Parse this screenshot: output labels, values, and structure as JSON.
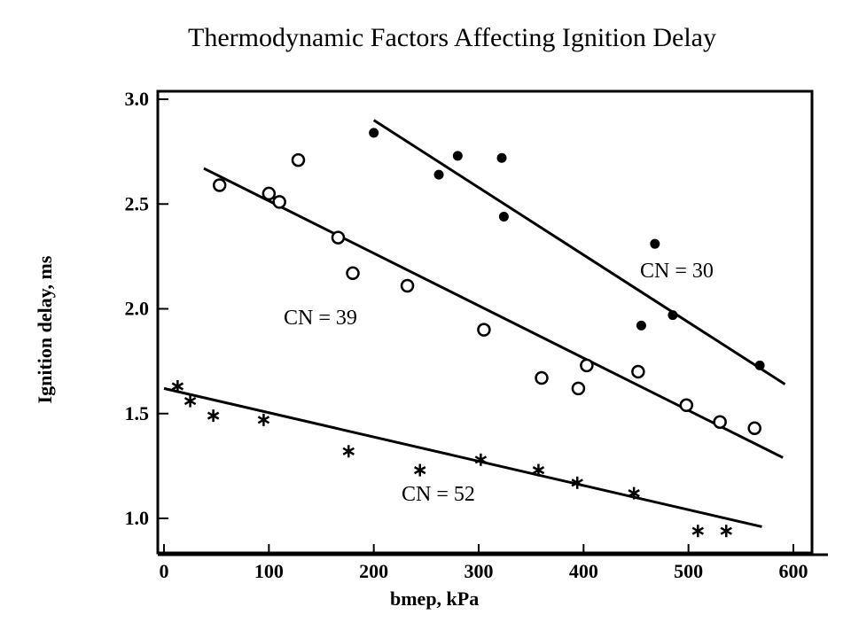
{
  "title": "Thermodynamic Factors Affecting Ignition Delay",
  "chart_data": {
    "type": "scatter",
    "title": "Thermodynamic Factors Affecting Ignition Delay",
    "xlabel": "bmep, kPa",
    "ylabel": "Ignition delay, ms",
    "xlim": [
      0,
      600
    ],
    "ylim": [
      0.9,
      3.0
    ],
    "x_ticks": [
      "0",
      "100",
      "200",
      "300",
      "400",
      "500",
      "600"
    ],
    "y_ticks": [
      "1.0",
      "1.5",
      "2.0",
      "2.5",
      "3.0"
    ],
    "grid": false,
    "series": [
      {
        "name": "CN = 30",
        "marker": "filled-circle",
        "points": [
          [
            200,
            2.84
          ],
          [
            262,
            2.64
          ],
          [
            280,
            2.73
          ],
          [
            322,
            2.72
          ],
          [
            324,
            2.44
          ],
          [
            455,
            1.92
          ],
          [
            468,
            2.31
          ],
          [
            485,
            1.97
          ],
          [
            568,
            1.73
          ]
        ],
        "fit": [
          [
            200,
            2.9
          ],
          [
            592,
            1.64
          ]
        ]
      },
      {
        "name": "CN = 39",
        "marker": "open-circle",
        "points": [
          [
            53,
            2.59
          ],
          [
            100,
            2.55
          ],
          [
            110,
            2.51
          ],
          [
            128,
            2.71
          ],
          [
            166,
            2.34
          ],
          [
            180,
            2.17
          ],
          [
            232,
            2.11
          ],
          [
            305,
            1.9
          ],
          [
            360,
            1.67
          ],
          [
            395,
            1.62
          ],
          [
            403,
            1.73
          ],
          [
            452,
            1.7
          ],
          [
            498,
            1.54
          ],
          [
            530,
            1.46
          ],
          [
            563,
            1.43
          ]
        ],
        "fit": [
          [
            38,
            2.67
          ],
          [
            590,
            1.29
          ]
        ]
      },
      {
        "name": "CN = 52",
        "marker": "asterisk",
        "points": [
          [
            13,
            1.63
          ],
          [
            25,
            1.56
          ],
          [
            47,
            1.49
          ],
          [
            95,
            1.47
          ],
          [
            176,
            1.32
          ],
          [
            244,
            1.23
          ],
          [
            302,
            1.28
          ],
          [
            357,
            1.23
          ],
          [
            394,
            1.17
          ],
          [
            448,
            1.12
          ],
          [
            509,
            0.94
          ],
          [
            536,
            0.94
          ]
        ],
        "fit": [
          [
            0,
            1.62
          ],
          [
            570,
            0.96
          ]
        ]
      }
    ]
  }
}
